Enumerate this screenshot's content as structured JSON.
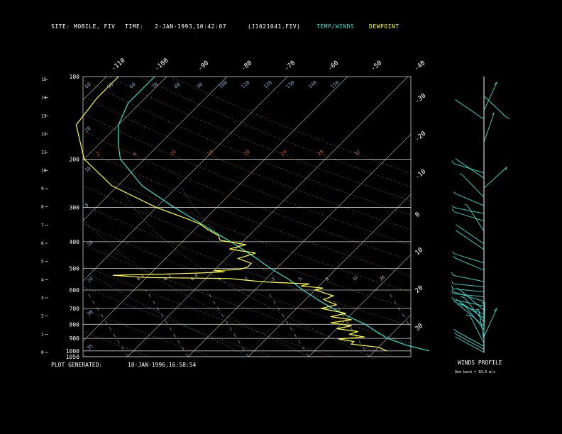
{
  "header": {
    "site_label": "SITE:",
    "site_value": "MOBILE, FIV",
    "time_label": "TIME:",
    "time_value": "2-JAN-1993,10:42:07",
    "file": "(J1021041.FIV)",
    "legend_temp": "TEMP/WINDS",
    "legend_dew": "DEWPOINT"
  },
  "footer": {
    "generated_label": "PLOT GENERATED:",
    "generated_value": "10-JAN-1996,16:58:54",
    "winds_title": "WINDS PROFILE",
    "winds_note": "One barb = 10.0 m/s"
  },
  "colors": {
    "temp": "#40e0d0",
    "dew": "#ffff40",
    "grid": "#c8c8c8",
    "dry_adiabat": "#b89060",
    "mixing": "#c07040",
    "moist": "#6aa8b8"
  },
  "chart_data": {
    "type": "line",
    "title": "",
    "pressure_ticks": [
      1050,
      1000,
      900,
      800,
      700,
      600,
      500,
      400,
      300,
      200,
      100
    ],
    "height_ticks": [
      0,
      1,
      2,
      3,
      4,
      5,
      6,
      7,
      8,
      9,
      10,
      11,
      12,
      13,
      14,
      15
    ],
    "right_ticks": [
      -30,
      -20,
      -10,
      0,
      10,
      20,
      30
    ],
    "top_ticks": [
      -110,
      -100,
      -90,
      -80,
      -70,
      -60,
      -50,
      -40
    ],
    "isotherm_labels": [
      60,
      50,
      60,
      70,
      80,
      90,
      100,
      110,
      120,
      130,
      140,
      150
    ],
    "dry_labels": [
      20,
      10,
      0
    ],
    "mixing_labels": [
      2,
      6,
      10,
      14,
      20,
      24,
      29,
      32
    ],
    "bottom_labels": [
      0.1,
      0.2,
      0.4,
      1,
      2,
      3,
      5,
      8,
      12,
      20
    ],
    "series": [
      {
        "name": "TEMP/WINDS",
        "points": [
          [
            1000,
            29
          ],
          [
            950,
            24
          ],
          [
            900,
            20
          ],
          [
            850,
            17
          ],
          [
            800,
            14
          ],
          [
            750,
            10
          ],
          [
            700,
            6
          ],
          [
            650,
            2
          ],
          [
            600,
            -2
          ],
          [
            550,
            -6
          ],
          [
            500,
            -11
          ],
          [
            450,
            -16
          ],
          [
            400,
            -22
          ],
          [
            350,
            -29
          ],
          [
            300,
            -37
          ],
          [
            250,
            -46
          ],
          [
            200,
            -54
          ],
          [
            175,
            -57
          ],
          [
            150,
            -60
          ],
          [
            125,
            -62
          ],
          [
            100,
            -62
          ]
        ]
      },
      {
        "name": "DEWPOINT",
        "points": [
          [
            1000,
            22
          ],
          [
            970,
            20
          ],
          [
            945,
            15
          ],
          [
            925,
            15
          ],
          [
            905,
            12
          ],
          [
            890,
            16
          ],
          [
            870,
            13
          ],
          [
            850,
            14
          ],
          [
            830,
            10
          ],
          [
            810,
            12
          ],
          [
            790,
            8
          ],
          [
            770,
            11
          ],
          [
            750,
            7
          ],
          [
            730,
            9
          ],
          [
            700,
            4
          ],
          [
            680,
            6
          ],
          [
            650,
            3
          ],
          [
            630,
            4
          ],
          [
            600,
            0
          ],
          [
            590,
            1
          ],
          [
            580,
            -3
          ],
          [
            570,
            -2
          ],
          [
            560,
            -10
          ],
          [
            550,
            -14
          ],
          [
            545,
            -16
          ],
          [
            540,
            -30
          ],
          [
            530,
            -36
          ],
          [
            525,
            -28
          ],
          [
            520,
            -22
          ],
          [
            515,
            -18
          ],
          [
            510,
            -20
          ],
          [
            505,
            -16
          ],
          [
            495,
            -15
          ],
          [
            480,
            -15
          ],
          [
            460,
            -18
          ],
          [
            440,
            -16
          ],
          [
            425,
            -21
          ],
          [
            410,
            -19
          ],
          [
            395,
            -24
          ],
          [
            380,
            -25
          ],
          [
            360,
            -28
          ],
          [
            345,
            -30
          ],
          [
            330,
            -33
          ],
          [
            300,
            -40
          ],
          [
            250,
            -51
          ],
          [
            200,
            -60
          ],
          [
            150,
            -67
          ],
          [
            120,
            -68
          ],
          [
            100,
            -68
          ]
        ]
      }
    ],
    "winds": [
      [
        1000,
        0.5,
        2
      ],
      [
        975,
        0.5,
        4
      ],
      [
        950,
        0.5,
        5
      ],
      [
        925,
        1.1,
        5
      ],
      [
        900,
        1.4,
        4
      ],
      [
        875,
        2.0,
        6
      ],
      [
        850,
        1.6,
        5
      ],
      [
        825,
        0.9,
        7
      ],
      [
        800,
        0.7,
        5
      ],
      [
        775,
        0.9,
        6
      ],
      [
        750,
        0.6,
        5
      ],
      [
        725,
        0.4,
        3
      ],
      [
        700,
        0.7,
        5
      ],
      [
        675,
        0.2,
        4
      ],
      [
        650,
        0.3,
        5
      ],
      [
        625,
        0.1,
        4
      ],
      [
        600,
        0.1,
        5
      ],
      [
        575,
        0.1,
        4
      ],
      [
        550,
        0.2,
        5
      ],
      [
        500,
        0.4,
        4
      ],
      [
        470,
        0.3,
        4
      ],
      [
        420,
        0.6,
        4
      ],
      [
        400,
        0.6,
        4
      ],
      [
        360,
        1.0,
        3
      ],
      [
        330,
        0.3,
        5
      ],
      [
        310,
        0.2,
        3
      ],
      [
        290,
        0.4,
        3
      ],
      [
        270,
        0.8,
        4
      ],
      [
        250,
        2.4,
        5
      ],
      [
        230,
        0.6,
        5
      ],
      [
        220,
        0.3,
        5
      ],
      [
        170,
        1.9,
        3
      ],
      [
        140,
        0.6,
        5
      ],
      [
        130,
        2.0,
        5
      ],
      [
        115,
        3.9,
        5
      ]
    ]
  }
}
